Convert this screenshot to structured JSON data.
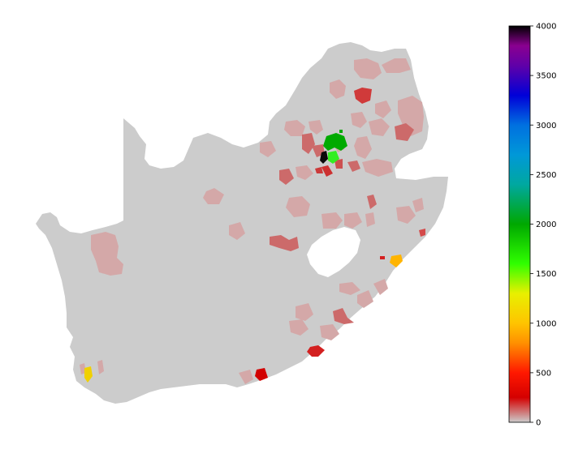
{
  "colorbar": {
    "min": 0,
    "max": 4000,
    "tick_labels": [
      "4000",
      "3500",
      "3000",
      "2500",
      "2000",
      "1500",
      "1000",
      "500",
      "0"
    ],
    "colormap": "nipy_spectral (reversed-low grey)",
    "gradient_stops": [
      {
        "value": 0,
        "color": "#cccccc"
      },
      {
        "value": 250,
        "color": "#d40000"
      },
      {
        "value": 500,
        "color": "#ff1800"
      },
      {
        "value": 800,
        "color": "#ff9000"
      },
      {
        "value": 1000,
        "color": "#ffc400"
      },
      {
        "value": 1300,
        "color": "#e8f000"
      },
      {
        "value": 1600,
        "color": "#30ff00"
      },
      {
        "value": 2000,
        "color": "#00a800"
      },
      {
        "value": 2400,
        "color": "#00a8a0"
      },
      {
        "value": 2700,
        "color": "#0098d8"
      },
      {
        "value": 3000,
        "color": "#0070e0"
      },
      {
        "value": 3300,
        "color": "#0000d8"
      },
      {
        "value": 3600,
        "color": "#6000a8"
      },
      {
        "value": 3800,
        "color": "#8a0090"
      },
      {
        "value": 4000,
        "color": "#000000"
      }
    ]
  },
  "map": {
    "land_color": "#cccccc",
    "background_color": "#ffffff"
  }
}
